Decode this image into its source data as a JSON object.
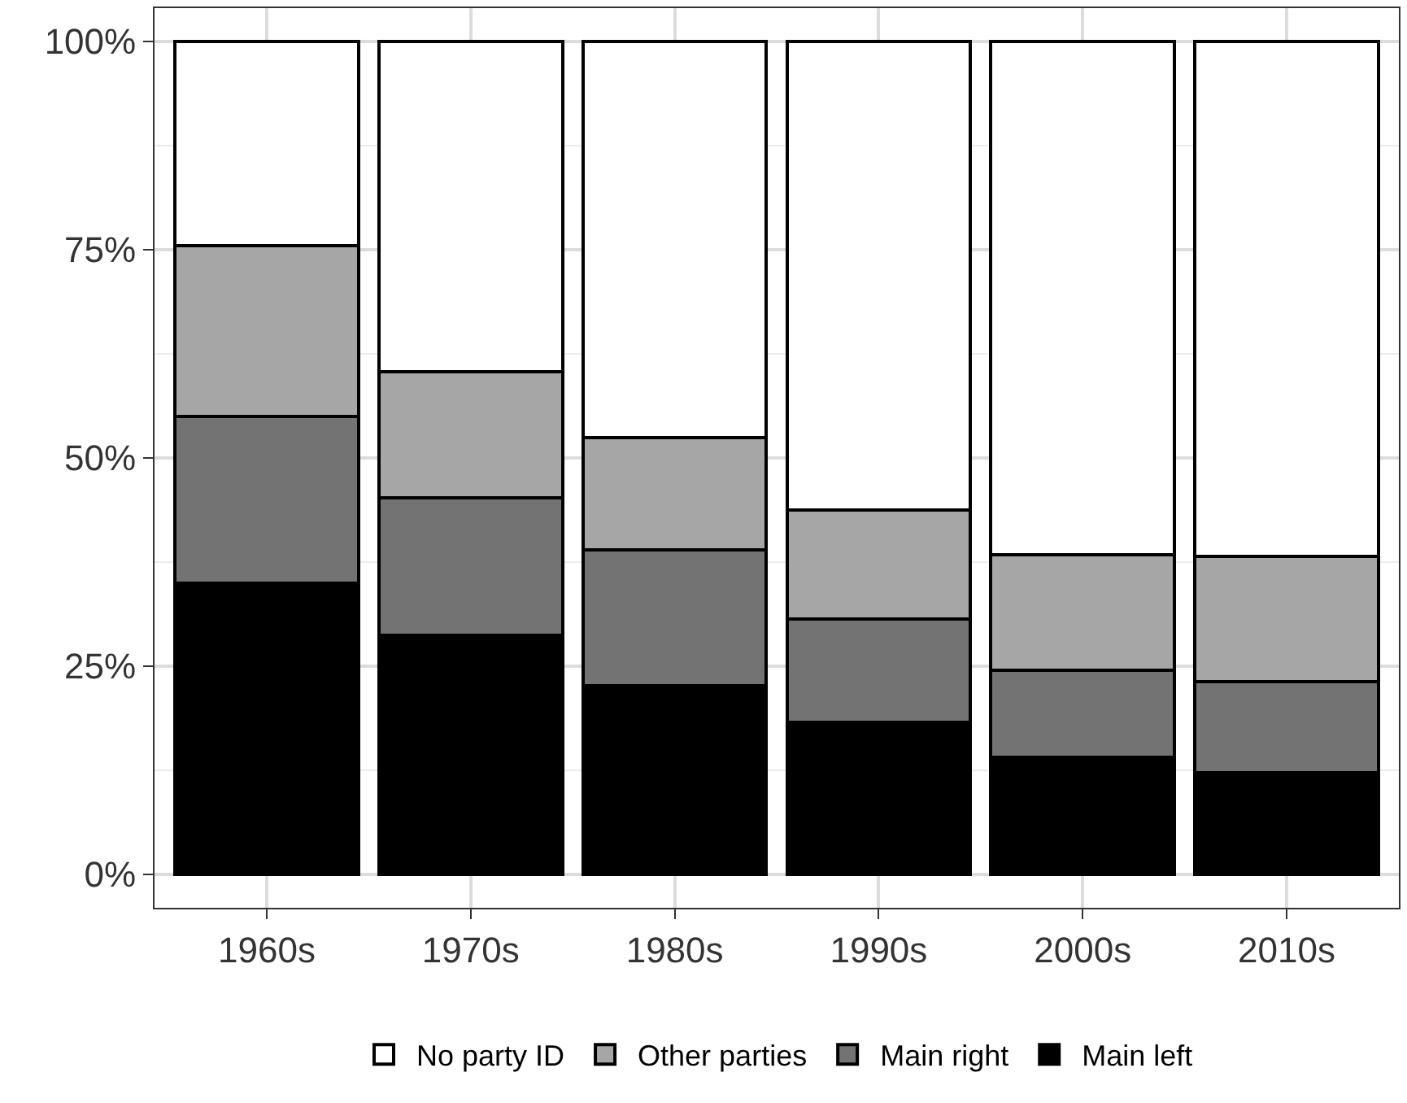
{
  "chart_data": {
    "type": "bar",
    "stacked": true,
    "categories": [
      "1960s",
      "1970s",
      "1980s",
      "1990s",
      "2000s",
      "2010s"
    ],
    "series": [
      {
        "name": "Main left",
        "color": "#000000",
        "values": [
          35,
          28.7,
          22.7,
          18.3,
          14.1,
          12.2
        ]
      },
      {
        "name": "Main right",
        "color": "#737373",
        "values": [
          20,
          16.5,
          16.3,
          12.4,
          10.4,
          10.9
        ]
      },
      {
        "name": "Other parties",
        "color": "#a6a6a6",
        "values": [
          20.5,
          15.2,
          13.4,
          13.1,
          13.9,
          15.1
        ]
      },
      {
        "name": "No party ID",
        "color": "#ffffff",
        "values": [
          24.5,
          39.6,
          47.6,
          56.2,
          61.6,
          61.8
        ]
      }
    ],
    "ylim": [
      -4,
      104
    ],
    "yticks": [
      {
        "value": 0,
        "label": "0%"
      },
      {
        "value": 25,
        "label": "25%"
      },
      {
        "value": 50,
        "label": "50%"
      },
      {
        "value": 75,
        "label": "75%"
      },
      {
        "value": 100,
        "label": "100%"
      }
    ],
    "grid": true,
    "legend": "bottom"
  }
}
